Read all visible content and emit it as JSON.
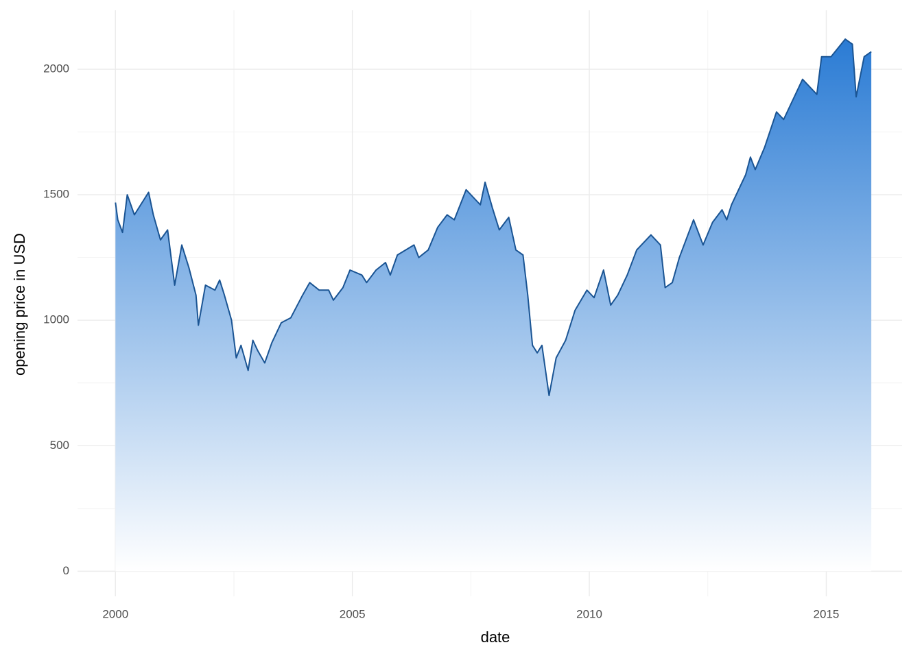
{
  "chart_data": {
    "type": "area",
    "x_label": "date",
    "y_label": "opening price in USD",
    "x": [
      2000.0,
      2000.05,
      2000.15,
      2000.25,
      2000.4,
      2000.6,
      2000.7,
      2000.8,
      2000.95,
      2001.1,
      2001.25,
      2001.4,
      2001.55,
      2001.7,
      2001.75,
      2001.9,
      2002.1,
      2002.2,
      2002.3,
      2002.45,
      2002.55,
      2002.65,
      2002.8,
      2002.9,
      2003.0,
      2003.15,
      2003.3,
      2003.5,
      2003.7,
      2003.95,
      2004.1,
      2004.3,
      2004.5,
      2004.6,
      2004.8,
      2004.95,
      2005.2,
      2005.3,
      2005.5,
      2005.7,
      2005.8,
      2005.95,
      2006.3,
      2006.4,
      2006.6,
      2006.8,
      2007.0,
      2007.15,
      2007.4,
      2007.6,
      2007.7,
      2007.8,
      2007.95,
      2008.1,
      2008.3,
      2008.45,
      2008.6,
      2008.7,
      2008.8,
      2008.9,
      2009.0,
      2009.15,
      2009.3,
      2009.5,
      2009.7,
      2009.95,
      2010.1,
      2010.3,
      2010.45,
      2010.6,
      2010.8,
      2011.0,
      2011.3,
      2011.5,
      2011.6,
      2011.75,
      2011.9,
      2012.2,
      2012.4,
      2012.6,
      2012.8,
      2012.9,
      2013.0,
      2013.3,
      2013.4,
      2013.5,
      2013.7,
      2013.95,
      2014.1,
      2014.3,
      2014.5,
      2014.8,
      2014.9,
      2015.1,
      2015.4,
      2015.55,
      2015.63,
      2015.8,
      2015.95
    ],
    "values": [
      1469,
      1400,
      1350,
      1500,
      1420,
      1480,
      1510,
      1420,
      1320,
      1360,
      1140,
      1300,
      1210,
      1100,
      980,
      1140,
      1120,
      1160,
      1100,
      1000,
      850,
      900,
      800,
      920,
      880,
      830,
      910,
      990,
      1010,
      1100,
      1150,
      1120,
      1120,
      1080,
      1130,
      1200,
      1180,
      1150,
      1200,
      1230,
      1180,
      1260,
      1300,
      1250,
      1280,
      1370,
      1420,
      1400,
      1520,
      1480,
      1460,
      1550,
      1450,
      1360,
      1410,
      1280,
      1260,
      1100,
      900,
      870,
      900,
      700,
      850,
      920,
      1040,
      1120,
      1090,
      1200,
      1060,
      1100,
      1180,
      1280,
      1340,
      1300,
      1130,
      1150,
      1250,
      1400,
      1300,
      1390,
      1440,
      1400,
      1460,
      1580,
      1650,
      1600,
      1690,
      1830,
      1800,
      1880,
      1960,
      1900,
      2050,
      2050,
      2120,
      2100,
      1890,
      2050,
      2070
    ],
    "color": "#1a5493",
    "fill_color": "#2a7bd4",
    "xlim": [
      1999.2,
      2016.6
    ],
    "ylim": [
      -100,
      2235
    ],
    "xticks": [
      2000,
      2005,
      2010,
      2015
    ],
    "yticks": [
      0,
      500,
      1000,
      1500,
      2000
    ],
    "grid": true
  }
}
